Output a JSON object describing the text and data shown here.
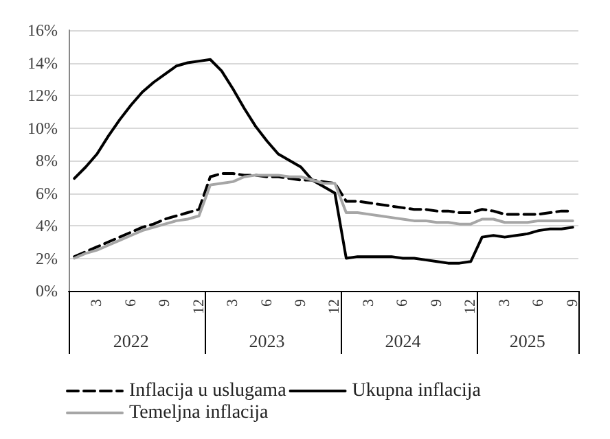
{
  "chart_data": {
    "type": "line",
    "categories": [
      null,
      null,
      "3",
      null,
      null,
      "6",
      null,
      null,
      "9",
      null,
      null,
      "12",
      null,
      null,
      "3",
      null,
      null,
      "6",
      null,
      null,
      "9",
      null,
      null,
      "12",
      null,
      null,
      "3",
      null,
      null,
      "6",
      null,
      null,
      "9",
      null,
      null,
      "12",
      null,
      null,
      "3",
      null,
      null,
      "6",
      null,
      null,
      "9"
    ],
    "annotations": [
      "2022",
      "2023",
      "2024",
      "2025"
    ],
    "series": [
      {
        "name": "Inflacija u uslugama",
        "color": "#000000",
        "line_style": "dashed",
        "values": [
          2.1,
          2.4,
          2.7,
          3.0,
          3.3,
          3.6,
          3.9,
          4.1,
          4.4,
          4.6,
          4.8,
          5.0,
          7.0,
          7.2,
          7.2,
          7.1,
          7.1,
          7.0,
          7.0,
          6.9,
          6.8,
          6.8,
          6.7,
          6.6,
          5.5,
          5.5,
          5.4,
          5.3,
          5.2,
          5.1,
          5.0,
          5.0,
          4.9,
          4.9,
          4.8,
          4.8,
          5.0,
          4.9,
          4.7,
          4.7,
          4.7,
          4.7,
          4.8,
          4.9,
          4.9
        ]
      },
      {
        "name": "Ukupna inflacija",
        "color": "#000000",
        "line_style": "solid",
        "values": [
          6.9,
          7.6,
          8.4,
          9.5,
          10.5,
          11.4,
          12.2,
          12.8,
          13.3,
          13.8,
          14.0,
          14.1,
          14.2,
          13.5,
          12.4,
          11.2,
          10.1,
          9.2,
          8.4,
          8.0,
          7.6,
          6.8,
          6.4,
          6.0,
          2.0,
          2.1,
          2.1,
          2.1,
          2.1,
          2.0,
          2.0,
          1.9,
          1.8,
          1.7,
          1.7,
          1.8,
          3.3,
          3.4,
          3.3,
          3.4,
          3.5,
          3.7,
          3.8,
          3.8,
          3.9
        ]
      },
      {
        "name": "Temeljna inflacija",
        "color": "#a6a6a6",
        "line_style": "solid",
        "values": [
          2.0,
          2.3,
          2.5,
          2.8,
          3.1,
          3.4,
          3.7,
          3.9,
          4.1,
          4.3,
          4.4,
          4.6,
          6.5,
          6.6,
          6.7,
          7.0,
          7.1,
          7.1,
          7.1,
          7.0,
          7.0,
          6.8,
          6.6,
          6.6,
          4.8,
          4.8,
          4.7,
          4.6,
          4.5,
          4.4,
          4.3,
          4.3,
          4.2,
          4.2,
          4.1,
          4.1,
          4.4,
          4.4,
          4.2,
          4.2,
          4.2,
          4.3,
          4.3,
          4.3,
          4.3
        ]
      }
    ],
    "ylim": [
      0,
      16
    ],
    "yticks": [
      {
        "value": 0,
        "label": "0%"
      },
      {
        "value": 2,
        "label": "2%"
      },
      {
        "value": 4,
        "label": "4%"
      },
      {
        "value": 6,
        "label": "6%"
      },
      {
        "value": 8,
        "label": "8%"
      },
      {
        "value": 10,
        "label": "10%"
      },
      {
        "value": 12,
        "label": "12%"
      },
      {
        "value": 14,
        "label": "14%"
      },
      {
        "value": 16,
        "label": "16%"
      }
    ],
    "grid": "y",
    "legend": "bottom",
    "marker": "none"
  }
}
